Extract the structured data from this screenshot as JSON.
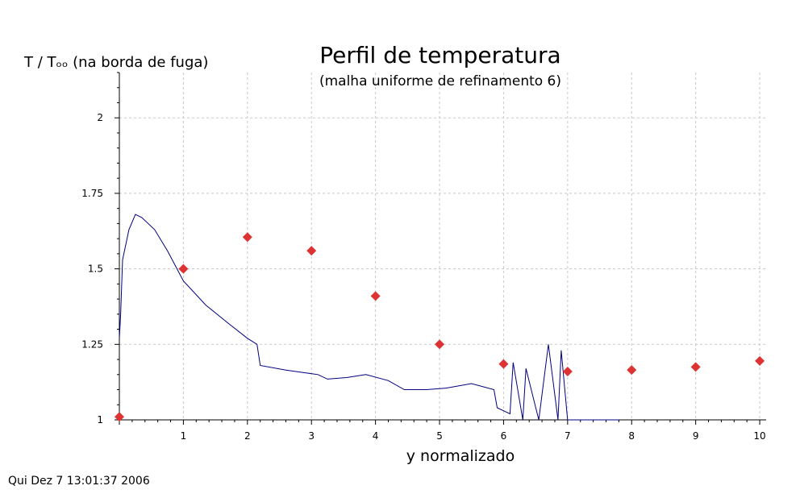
{
  "chart_data": {
    "type": "scatter",
    "title": "Perfil de temperatura",
    "subtitle": "(malha uniforme de refinamento 6)",
    "xlabel": "y normalizado",
    "ylabel": "T / Tₒₒ (na borda de fuga)",
    "xlim": [
      0,
      10.1
    ],
    "ylim": [
      1,
      2.15
    ],
    "x_ticks": [
      1,
      2,
      3,
      4,
      5,
      6,
      7,
      8,
      9,
      10
    ],
    "y_ticks": [
      1,
      1.25,
      1.5,
      1.75,
      2
    ],
    "y_tick_labels": [
      "1",
      "1.25",
      "1.5",
      "1.75",
      "2"
    ],
    "grid": true,
    "colors": {
      "line": "#000080",
      "markers": "#dd3333"
    },
    "series": [
      {
        "kind": "line",
        "x": [
          0,
          0.02,
          0.05,
          0.15,
          0.25,
          0.35,
          0.55,
          0.75,
          1.0,
          1.35,
          1.7,
          2.0,
          2.15,
          2.2,
          2.6,
          3.1,
          3.25,
          3.55,
          3.85,
          4.2,
          4.45,
          4.8,
          5.1,
          5.5,
          5.85,
          5.9,
          6.1,
          6.15,
          6.3,
          6.35,
          6.55,
          6.7,
          6.85,
          6.9,
          7.0,
          7.8
        ],
        "y": [
          1.27,
          1.35,
          1.53,
          1.63,
          1.68,
          1.67,
          1.63,
          1.56,
          1.46,
          1.38,
          1.32,
          1.27,
          1.25,
          1.18,
          1.165,
          1.15,
          1.135,
          1.14,
          1.15,
          1.13,
          1.1,
          1.1,
          1.105,
          1.12,
          1.1,
          1.04,
          1.02,
          1.19,
          1.0,
          1.17,
          1.0,
          1.25,
          1.0,
          1.23,
          1.0,
          1.0
        ]
      },
      {
        "kind": "markers",
        "x": [
          0,
          1,
          2,
          3,
          4,
          5,
          6,
          7,
          8,
          9,
          10
        ],
        "y": [
          1.01,
          1.5,
          1.605,
          1.56,
          1.41,
          1.25,
          1.185,
          1.16,
          1.165,
          1.175,
          1.195
        ]
      }
    ]
  },
  "timestamp": "Qui Dez 7 13:01:37 2006"
}
